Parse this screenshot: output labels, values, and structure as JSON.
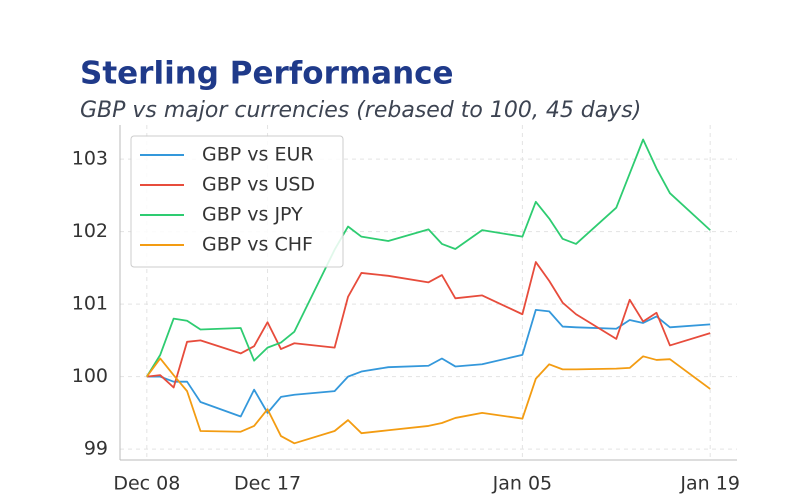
{
  "chart_data": {
    "type": "line",
    "title": "Sterling Performance",
    "subtitle": "GBP vs major currencies (rebased to 100, 45 days)",
    "x": [
      "Dec 08",
      "Dec 09",
      "Dec 10",
      "Dec 11",
      "Dec 12",
      "Dec 15",
      "Dec 16",
      "Dec 17",
      "Dec 18",
      "Dec 19",
      "Dec 22",
      "Dec 23",
      "Dec 24",
      "Dec 26",
      "Dec 29",
      "Dec 30",
      "Dec 31",
      "Jan 02",
      "Jan 05",
      "Jan 06",
      "Jan 07",
      "Jan 08",
      "Jan 09",
      "Jan 12",
      "Jan 13",
      "Jan 14",
      "Jan 15",
      "Jan 16",
      "Jan 19"
    ],
    "xlim": [
      "Dec 06",
      "Jan 21"
    ],
    "xticks": [
      "Dec 08",
      "Dec 17",
      "Jan 05",
      "Jan 19"
    ],
    "ylim": [
      98.85,
      103.47
    ],
    "yticks": [
      99,
      100,
      101,
      102,
      103
    ],
    "grid": true,
    "legend": "upper left",
    "series": [
      {
        "name": "GBP vs EUR",
        "color": "#3498db",
        "values": [
          100,
          100.0,
          99.93,
          99.93,
          99.65,
          99.45,
          99.82,
          99.5,
          99.72,
          99.75,
          99.8,
          100.0,
          100.07,
          100.13,
          100.15,
          100.25,
          100.14,
          100.17,
          100.3,
          100.92,
          100.9,
          100.69,
          100.68,
          100.66,
          100.78,
          100.74,
          100.83,
          100.68,
          100.72
        ]
      },
      {
        "name": "GBP vs USD",
        "color": "#e74c3c",
        "values": [
          100,
          100.02,
          99.85,
          100.48,
          100.5,
          100.32,
          100.42,
          100.75,
          100.38,
          100.46,
          100.4,
          101.1,
          101.43,
          101.39,
          101.3,
          101.4,
          101.08,
          101.12,
          100.86,
          101.58,
          101.32,
          101.02,
          100.86,
          100.52,
          101.06,
          100.76,
          100.88,
          100.43,
          100.6
        ]
      },
      {
        "name": "GBP vs JPY",
        "color": "#2ecc71",
        "values": [
          100,
          100.3,
          100.8,
          100.77,
          100.65,
          100.67,
          100.22,
          100.4,
          100.47,
          100.62,
          101.75,
          102.07,
          101.93,
          101.87,
          102.03,
          101.83,
          101.76,
          102.02,
          101.93,
          102.41,
          102.18,
          101.9,
          101.83,
          102.33,
          102.8,
          103.27,
          102.87,
          102.53,
          102.02
        ]
      },
      {
        "name": "GBP vs CHF",
        "color": "#f39c12",
        "values": [
          100,
          100.25,
          100.02,
          99.8,
          99.25,
          99.24,
          99.32,
          99.55,
          99.18,
          99.08,
          99.25,
          99.4,
          99.22,
          99.26,
          99.32,
          99.36,
          99.43,
          99.5,
          99.42,
          99.97,
          100.17,
          100.1,
          100.1,
          100.11,
          100.12,
          100.28,
          100.23,
          100.24,
          99.83
        ]
      }
    ]
  }
}
